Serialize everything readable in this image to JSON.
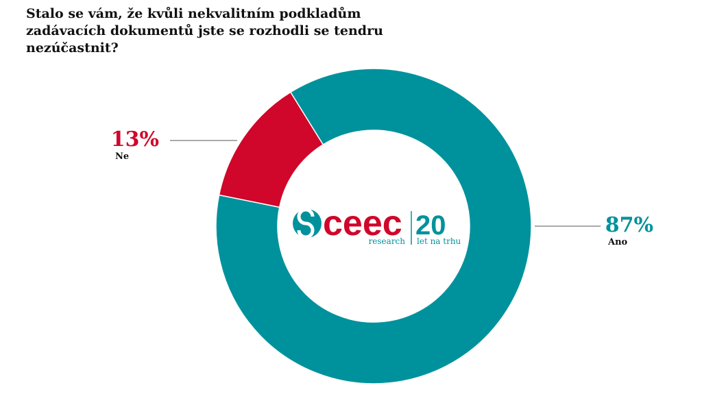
{
  "chart_data": {
    "type": "donut",
    "title": "Stalo se vám, že kvůli nekvalitním podkladům zadávacích dokumentů jste se rozhodli se tendru nezúčastnit?",
    "categories": [
      "Ano",
      "Ne"
    ],
    "values": [
      87,
      13
    ],
    "value_labels": [
      "87%",
      "13%"
    ],
    "colors": [
      "#00929c",
      "#d0062a"
    ]
  },
  "logo": {
    "name": "ceec",
    "sub": "research",
    "years": "20",
    "years_sub": "let na trhu"
  }
}
